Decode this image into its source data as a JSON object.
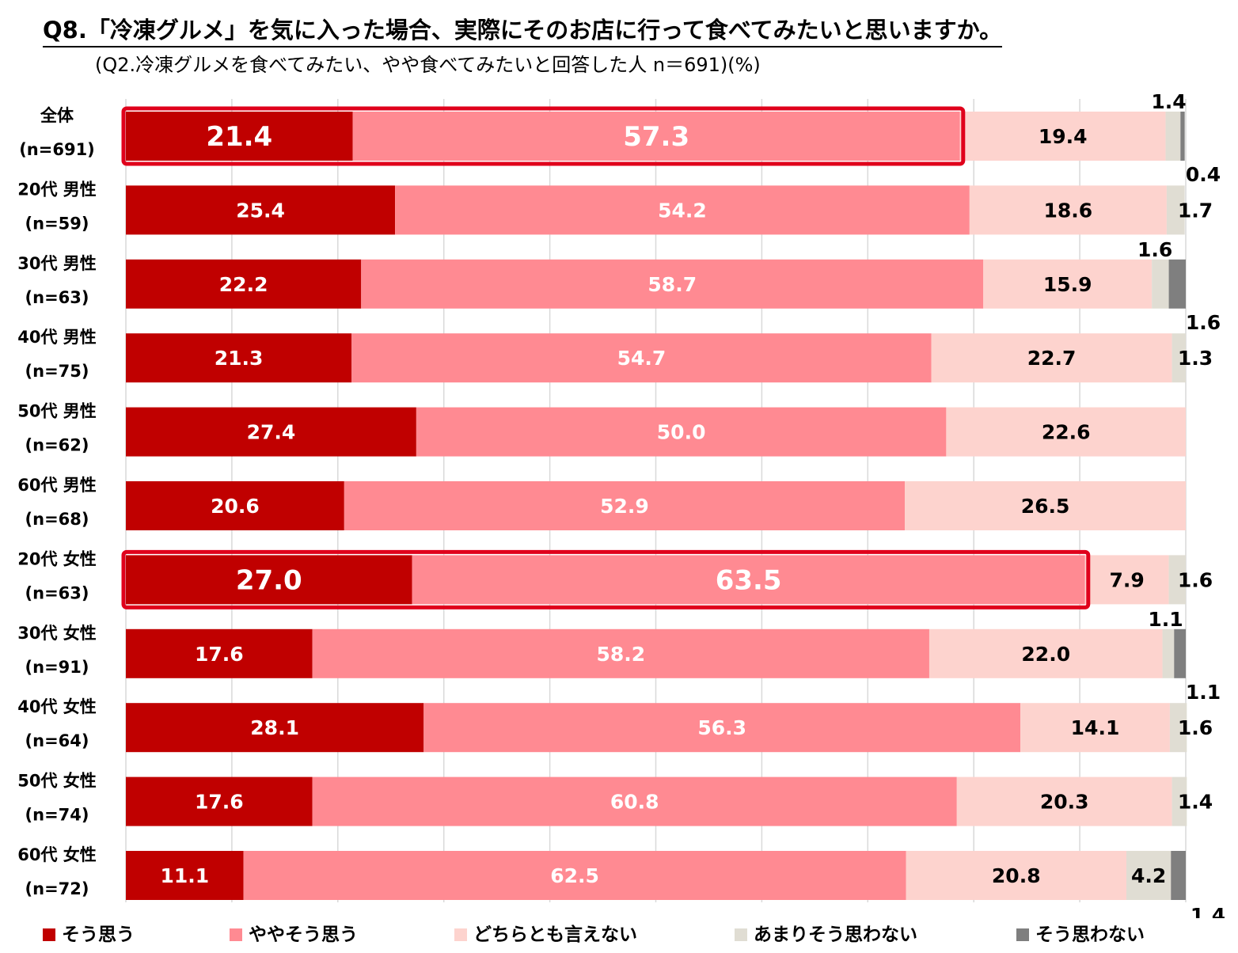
{
  "chart_data": {
    "type": "bar",
    "orientation": "horizontal",
    "stacked": true,
    "title": "Q8.「冷凍グルメ」を気に入った場合、実際にそのお店に行って食べてみたいと思いますか。",
    "subtitle": "(Q2.冷凍グルメを食べてみたい、やや食べてみたいと回答した人 n＝691)(%)",
    "xlim": [
      0,
      100
    ],
    "grid": true,
    "legend_position": "bottom",
    "categories": [
      {
        "label": "全体",
        "n": "(n=691)"
      },
      {
        "label": "20代 男性",
        "n": "(n=59)"
      },
      {
        "label": "30代 男性",
        "n": "(n=63)"
      },
      {
        "label": "40代 男性",
        "n": "(n=75)"
      },
      {
        "label": "50代 男性",
        "n": "(n=62)"
      },
      {
        "label": "60代 男性",
        "n": "(n=68)"
      },
      {
        "label": "20代 女性",
        "n": "(n=63)"
      },
      {
        "label": "30代 女性",
        "n": "(n=91)"
      },
      {
        "label": "40代 女性",
        "n": "(n=64)"
      },
      {
        "label": "50代 女性",
        "n": "(n=74)"
      },
      {
        "label": "60代 女性",
        "n": "(n=72)"
      }
    ],
    "series": [
      {
        "name": "そう思う",
        "color": "#c00000",
        "label_color": "#ffffff",
        "values": [
          21.4,
          25.4,
          22.2,
          21.3,
          27.4,
          20.6,
          27.0,
          17.6,
          28.1,
          17.6,
          11.1
        ]
      },
      {
        "name": "ややそう思う",
        "color": "#ff8a92",
        "label_color": "#ffffff",
        "values": [
          57.3,
          54.2,
          58.7,
          54.7,
          50.0,
          52.9,
          63.5,
          58.2,
          56.3,
          60.8,
          62.5
        ]
      },
      {
        "name": "どちらとも言えない",
        "color": "#fdd3ce",
        "label_color": "#000000",
        "values": [
          19.4,
          18.6,
          15.9,
          22.7,
          22.6,
          26.5,
          7.9,
          22.0,
          14.1,
          20.3,
          20.8
        ]
      },
      {
        "name": "あまりそう思わない",
        "color": "#e0ddd3",
        "label_color": "#000000",
        "values": [
          1.4,
          1.7,
          1.6,
          1.3,
          null,
          null,
          1.6,
          1.1,
          1.6,
          1.4,
          4.2
        ]
      },
      {
        "name": "そう思わない",
        "color": "#7f7f7f",
        "label_color": "#000000",
        "values": [
          0.4,
          null,
          1.6,
          null,
          null,
          null,
          null,
          1.1,
          null,
          null,
          1.4
        ]
      }
    ],
    "highlighted_rows": [
      0,
      6
    ],
    "highlight_color": "#e0001b"
  }
}
